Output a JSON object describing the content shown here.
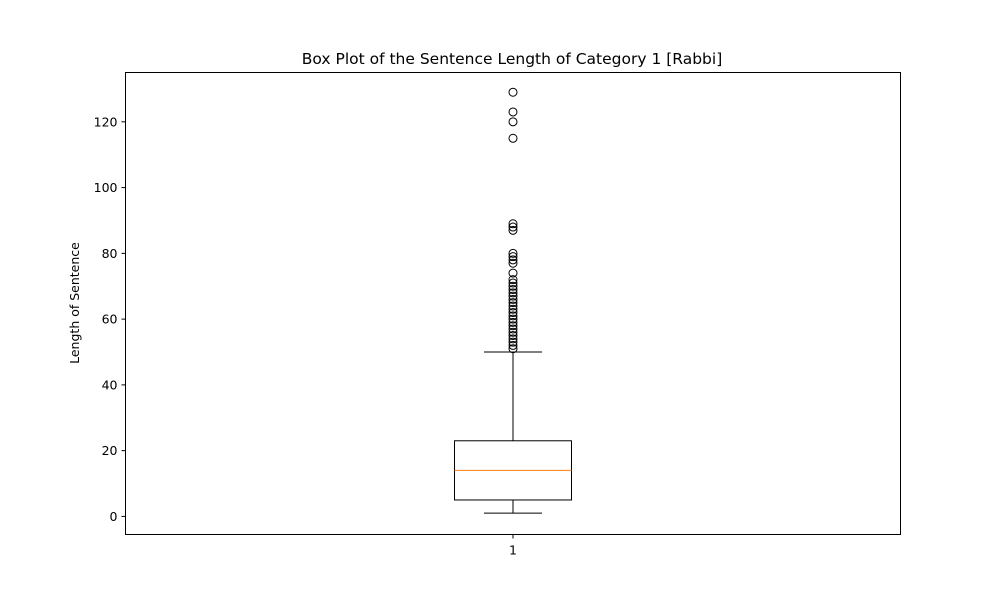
{
  "chart_data": {
    "type": "box",
    "title": "Box Plot of the Sentence Length of Category 1 [Rabbi]",
    "xlabel": "",
    "ylabel": "Length of Sentence",
    "categories": [
      "1"
    ],
    "ylim": [
      -5.5,
      135
    ],
    "yticks": [
      0,
      20,
      40,
      60,
      80,
      100,
      120
    ],
    "grid": false,
    "boxes": [
      {
        "label": "1",
        "whisker_low": 1,
        "q1": 5,
        "median": 14,
        "q3": 23,
        "whisker_high": 50,
        "outliers": [
          51,
          52,
          53,
          54,
          55,
          56,
          57,
          58,
          59,
          60,
          61,
          62,
          63,
          64,
          65,
          66,
          67,
          68,
          69,
          70,
          71,
          72,
          74,
          77,
          78,
          79,
          80,
          87,
          88,
          89,
          115,
          120,
          123,
          129
        ]
      }
    ],
    "colors": {
      "box": "#000000",
      "median": "#ff7f0e",
      "outlier": "#000000"
    }
  }
}
